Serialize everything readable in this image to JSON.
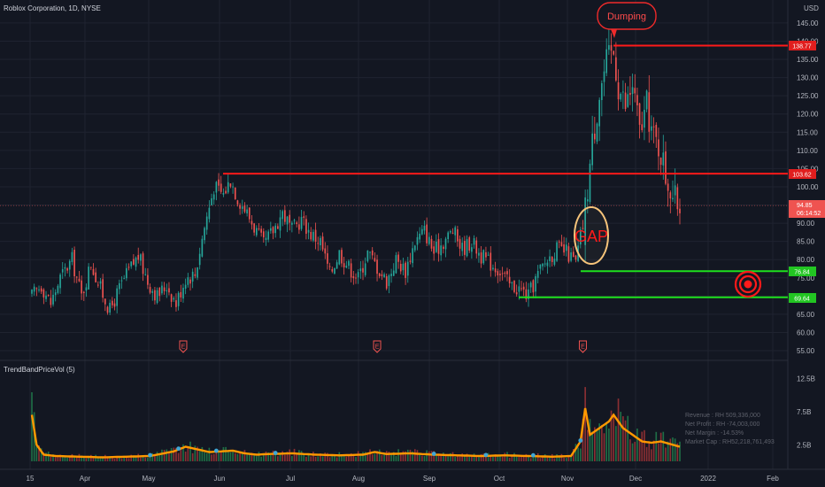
{
  "header": {
    "symbol_title": "Roblox Corporation, 1D, NYSE",
    "currency": "USD"
  },
  "indicator": {
    "name": "TrendBandPriceVol (5)"
  },
  "price_badges": {
    "high": "138.77",
    "resistance": "103.62",
    "last_price": "94.85",
    "countdown": "06:14:52",
    "support_1": "76.84",
    "support_2": "69.64"
  },
  "annotations": {
    "dumping": "Dumping",
    "gap": "GAP",
    "earnings_marker": "E"
  },
  "fundamentals": {
    "revenue": "Revenue : RH 509,336,000",
    "net_profit": "Net Profit : RH -74,003,000",
    "net_margin": "Net Margin : -14.53%",
    "market_cap": "Market Cap : RH52,218,761,493"
  },
  "colors": {
    "background": "#131722",
    "up": "#26a69a",
    "down": "#ef5350",
    "resistance_line": "#ff1a1a",
    "support_line": "#1ee01e",
    "volume_ma": "#ff9800",
    "gap_circle": "#f5c37a"
  },
  "chart_data": [
    {
      "type": "candlestick",
      "title": "Roblox Corporation, 1D, NYSE",
      "y_axis_unit": "USD",
      "y_ticks": [
        "55.00",
        "60.00",
        "65.00",
        "70.00",
        "75.00",
        "80.00",
        "85.00",
        "90.00",
        "95.00",
        "100.00",
        "105.00",
        "110.00",
        "115.00",
        "120.00",
        "125.00",
        "130.00",
        "135.00",
        "140.00",
        "145.00"
      ],
      "x_ticks": [
        "15",
        "Apr",
        "May",
        "Jun",
        "Jul",
        "Aug",
        "Sep",
        "Oct",
        "Nov",
        "Dec",
        "2022",
        "Feb"
      ],
      "ylim": [
        52,
        150
      ],
      "horizontal_levels": [
        {
          "label": "138.77",
          "value": 138.77,
          "role": "resistance"
        },
        {
          "label": "103.62",
          "value": 103.62,
          "role": "resistance"
        },
        {
          "label": "76.84",
          "value": 76.84,
          "role": "support"
        },
        {
          "label": "69.64",
          "value": 69.64,
          "role": "support"
        }
      ],
      "last_price": 94.85,
      "price_path": [
        [
          0,
          70
        ],
        [
          4,
          73
        ],
        [
          8,
          68
        ],
        [
          12,
          75
        ],
        [
          17,
          80
        ],
        [
          21,
          70
        ],
        [
          25,
          79
        ],
        [
          29,
          72
        ],
        [
          33,
          66
        ],
        [
          37,
          72
        ],
        [
          41,
          77
        ],
        [
          45,
          81
        ],
        [
          49,
          74
        ],
        [
          53,
          70
        ],
        [
          57,
          73
        ],
        [
          61,
          68
        ],
        [
          65,
          75
        ],
        [
          69,
          76
        ],
        [
          73,
          89
        ],
        [
          77,
          100
        ],
        [
          81,
          98
        ],
        [
          84,
          102
        ],
        [
          87,
          97
        ],
        [
          90,
          94
        ],
        [
          94,
          89
        ],
        [
          98,
          84
        ],
        [
          102,
          88
        ],
        [
          106,
          93
        ],
        [
          110,
          88
        ],
        [
          114,
          91
        ],
        [
          118,
          87
        ],
        [
          122,
          85
        ],
        [
          126,
          76
        ],
        [
          130,
          82
        ],
        [
          134,
          78
        ],
        [
          138,
          75
        ],
        [
          142,
          82
        ],
        [
          146,
          78
        ],
        [
          150,
          74
        ],
        [
          154,
          80
        ],
        [
          158,
          77
        ],
        [
          162,
          85
        ],
        [
          166,
          88
        ],
        [
          170,
          82
        ],
        [
          174,
          85
        ],
        [
          178,
          88
        ],
        [
          182,
          83
        ],
        [
          186,
          85
        ],
        [
          190,
          81
        ],
        [
          194,
          79
        ],
        [
          198,
          77
        ],
        [
          202,
          73
        ],
        [
          206,
          72
        ],
        [
          210,
          70
        ],
        [
          214,
          76
        ],
        [
          218,
          80
        ],
        [
          222,
          83
        ],
        [
          226,
          82
        ],
        [
          230,
          79
        ],
        [
          234,
          94
        ],
        [
          237,
          112
        ],
        [
          240,
          126
        ],
        [
          243,
          134
        ],
        [
          246,
          137
        ],
        [
          248,
          128
        ],
        [
          251,
          122
        ],
        [
          254,
          128
        ],
        [
          257,
          115
        ],
        [
          260,
          122
        ],
        [
          263,
          113
        ],
        [
          266,
          110
        ],
        [
          268,
          103
        ],
        [
          270,
          100
        ],
        [
          272,
          96
        ],
        [
          274,
          95
        ]
      ],
      "earnings_markers_x": [
        64,
        146,
        233
      ]
    },
    {
      "type": "bar",
      "title": "TrendBandPriceVol (5)",
      "y_ticks": [
        "2.5B",
        "7.5B",
        "12.5B"
      ],
      "ylim": [
        0,
        13
      ],
      "volume_path": [
        [
          0,
          7
        ],
        [
          2,
          2.5
        ],
        [
          5,
          1
        ],
        [
          10,
          0.8
        ],
        [
          20,
          0.7
        ],
        [
          30,
          0.6
        ],
        [
          40,
          0.7
        ],
        [
          50,
          0.8
        ],
        [
          60,
          1.5
        ],
        [
          65,
          2.2
        ],
        [
          70,
          1.8
        ],
        [
          75,
          1.4
        ],
        [
          80,
          1.5
        ],
        [
          85,
          1.6
        ],
        [
          90,
          1.2
        ],
        [
          95,
          1.0
        ],
        [
          100,
          1.1
        ],
        [
          110,
          1.2
        ],
        [
          120,
          1.0
        ],
        [
          130,
          0.9
        ],
        [
          140,
          1.0
        ],
        [
          145,
          1.4
        ],
        [
          150,
          1.1
        ],
        [
          160,
          1.2
        ],
        [
          170,
          1.0
        ],
        [
          180,
          0.9
        ],
        [
          190,
          0.8
        ],
        [
          200,
          0.9
        ],
        [
          210,
          0.8
        ],
        [
          220,
          0.7
        ],
        [
          228,
          0.8
        ],
        [
          232,
          3
        ],
        [
          234,
          8
        ],
        [
          236,
          4
        ],
        [
          240,
          5
        ],
        [
          244,
          6
        ],
        [
          246,
          7
        ],
        [
          250,
          5
        ],
        [
          254,
          4
        ],
        [
          258,
          3
        ],
        [
          262,
          2.8
        ],
        [
          266,
          3
        ],
        [
          270,
          2.6
        ],
        [
          274,
          2.2
        ]
      ]
    }
  ]
}
